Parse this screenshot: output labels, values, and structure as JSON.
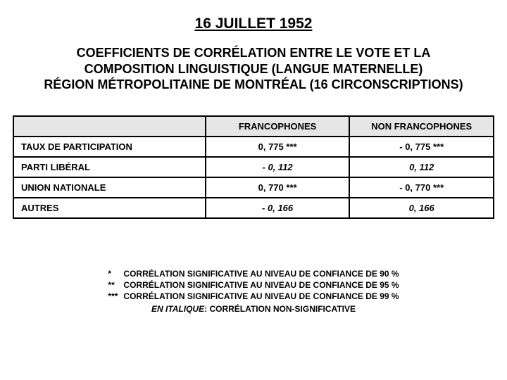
{
  "title": "16 JUILLET 1952",
  "subtitle_line1": "COEFFICIENTS DE CORRÉLATION ENTRE LE VOTE ET LA",
  "subtitle_line2": "COMPOSITION LINGUISTIQUE (LANGUE MATERNELLE)",
  "subtitle_line3": "RÉGION MÉTROPOLITAINE DE MONTRÉAL (16 CIRCONSCRIPTIONS)",
  "table": {
    "header_blank": "",
    "header_col1": "FRANCOPHONES",
    "header_col2": "NON FRANCOPHONES",
    "rows": [
      {
        "label": "TAUX DE PARTICIPATION",
        "c1": "0, 775 ***",
        "c1_ns": false,
        "c2": "- 0, 775 ***",
        "c2_ns": false
      },
      {
        "label": "PARTI LIBÉRAL",
        "c1": "- 0, 112",
        "c1_ns": true,
        "c2": "0, 112",
        "c2_ns": true
      },
      {
        "label": "UNION NATIONALE",
        "c1": "0, 770 ***",
        "c1_ns": false,
        "c2": "- 0, 770 ***",
        "c2_ns": false
      },
      {
        "label": "AUTRES",
        "c1": "- 0, 166",
        "c1_ns": true,
        "c2": "0, 166",
        "c2_ns": true
      }
    ]
  },
  "legend": {
    "l1_star": "*",
    "l1_text": "CORRÉLATION SIGNIFICATIVE AU NIVEAU DE CONFIANCE DE 90 %",
    "l2_star": "**",
    "l2_text": "CORRÉLATION SIGNIFICATIVE AU NIVEAU DE CONFIANCE DE 95 %",
    "l3_star": "***",
    "l3_text": "CORRÉLATION SIGNIFICATIVE AU NIVEAU DE CONFIANCE DE 99 %",
    "italic_label": "EN ITALIQUE",
    "italic_rest": ": CORRÉLATION NON-SIGNIFICATIVE"
  },
  "style": {
    "bg": "#ffffff",
    "text": "#000000",
    "header_bg": "#e6e6e6",
    "border": "#000000"
  }
}
